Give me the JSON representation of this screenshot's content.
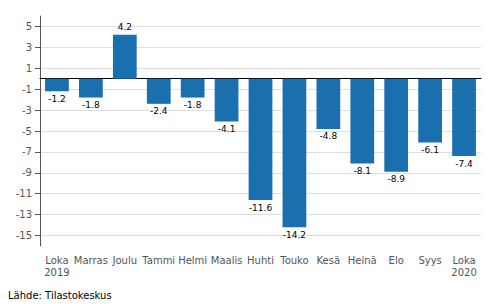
{
  "chart_data": {
    "type": "bar",
    "categories": [
      "Loka\n2019",
      "Marras",
      "Joulu",
      "Tammi",
      "Helmi",
      "Maalis",
      "Huhti",
      "Touko",
      "Kesä",
      "Heinä",
      "Elo",
      "Syys",
      "Loka\n2020"
    ],
    "values": [
      -1.2,
      -1.8,
      4.2,
      -2.4,
      -1.8,
      -4.1,
      -11.6,
      -14.2,
      -4.8,
      -8.1,
      -8.9,
      -6.1,
      -7.4
    ],
    "color": "#1a6faf",
    "ylim": [
      -16,
      6
    ],
    "yticks": [
      -15,
      -13,
      -11,
      -9,
      -7,
      -5,
      -3,
      -1,
      1,
      3,
      5
    ],
    "grid": true,
    "data_labels": true,
    "annotation": "Lähde: Tilastokeskus"
  }
}
